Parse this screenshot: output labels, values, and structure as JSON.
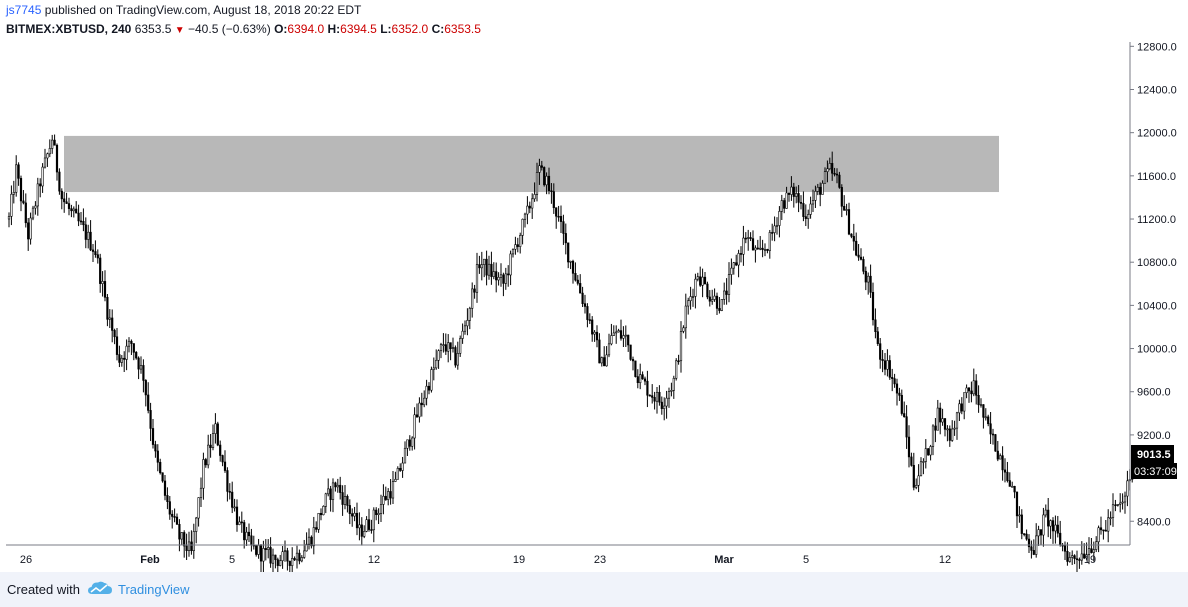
{
  "header": {
    "username": "js7745",
    "published_text": "published on TradingView.com, August 18, 2018 20:22 EDT",
    "symbol": "BITMEX:XBTUSD, 240",
    "last": "6353.5",
    "change": "−40.5 (−0.63%)",
    "open_label": "O:",
    "open": "6394.0",
    "high_label": "H:",
    "high": "6394.5",
    "low_label": "L:",
    "low": "6352.0",
    "close_label": "C:",
    "close": "6353.5"
  },
  "footer": {
    "created_with": "Created with",
    "brand": "TradingView"
  },
  "colors": {
    "zone": "#b8b8b8",
    "candle_up": "#ffffff",
    "candle_down": "#000000",
    "link": "#2962ff",
    "red": "#cc0000"
  },
  "chart_data": {
    "type": "candlestick",
    "price_axis": {
      "ticks": [
        "12800.0",
        "12400.0",
        "12000.0",
        "11600.0",
        "11200.0",
        "10800.0",
        "10400.0",
        "10000.0",
        "9600.0",
        "9200.0",
        "8400.0"
      ],
      "range": [
        8180,
        12840
      ]
    },
    "time_axis": {
      "ticks": [
        "26",
        "Feb",
        "5",
        "12",
        "19",
        "23",
        "Mar",
        "5",
        "12",
        "19"
      ]
    },
    "price_badge": "9013.5",
    "countdown_badge": "03:37:09",
    "zone": {
      "y_low": 11450,
      "y_high": 11970
    },
    "series": [
      {
        "price_path": [
          [
            0,
            11200
          ],
          [
            3,
            11650
          ],
          [
            8,
            11050
          ],
          [
            13,
            11550
          ],
          [
            18,
            11950
          ],
          [
            22,
            11400
          ],
          [
            26,
            11250
          ],
          [
            31,
            11100
          ],
          [
            36,
            10900
          ],
          [
            41,
            10350
          ],
          [
            46,
            9900
          ],
          [
            51,
            10050
          ],
          [
            56,
            9750
          ],
          [
            61,
            9000
          ],
          [
            66,
            8550
          ],
          [
            71,
            8250
          ],
          [
            76,
            8100
          ],
          [
            81,
            8900
          ],
          [
            86,
            9250
          ],
          [
            91,
            8750
          ],
          [
            96,
            8350
          ],
          [
            101,
            8150
          ],
          [
            106,
            8100
          ],
          [
            111,
            8050
          ],
          [
            116,
            8050
          ],
          [
            121,
            8100
          ],
          [
            126,
            8250
          ],
          [
            131,
            8550
          ],
          [
            136,
            8750
          ],
          [
            141,
            8550
          ],
          [
            146,
            8300
          ],
          [
            151,
            8400
          ],
          [
            156,
            8600
          ],
          [
            161,
            8750
          ],
          [
            166,
            9100
          ],
          [
            171,
            9450
          ],
          [
            176,
            9750
          ],
          [
            181,
            10050
          ],
          [
            186,
            9900
          ],
          [
            191,
            10300
          ],
          [
            196,
            10800
          ],
          [
            201,
            10700
          ],
          [
            206,
            10600
          ],
          [
            211,
            10950
          ],
          [
            216,
            11250
          ],
          [
            221,
            11650
          ],
          [
            224,
            11550
          ],
          [
            227,
            11350
          ],
          [
            232,
            10950
          ],
          [
            237,
            10600
          ],
          [
            242,
            10250
          ],
          [
            247,
            9850
          ],
          [
            252,
            10150
          ],
          [
            257,
            10100
          ],
          [
            262,
            9750
          ],
          [
            267,
            9600
          ],
          [
            272,
            9500
          ],
          [
            277,
            9700
          ],
          [
            282,
            10350
          ],
          [
            287,
            10700
          ],
          [
            292,
            10500
          ],
          [
            297,
            10400
          ],
          [
            302,
            10750
          ],
          [
            307,
            11050
          ],
          [
            312,
            10850
          ],
          [
            317,
            11000
          ],
          [
            322,
            11350
          ],
          [
            327,
            11450
          ],
          [
            332,
            11250
          ],
          [
            337,
            11450
          ],
          [
            342,
            11650
          ],
          [
            345,
            11550
          ],
          [
            348,
            11300
          ],
          [
            353,
            10900
          ],
          [
            358,
            10600
          ],
          [
            362,
            10000
          ],
          [
            367,
            9800
          ],
          [
            372,
            9450
          ],
          [
            377,
            8750
          ],
          [
            382,
            9000
          ],
          [
            387,
            9400
          ],
          [
            392,
            9200
          ],
          [
            397,
            9500
          ],
          [
            402,
            9650
          ],
          [
            407,
            9300
          ],
          [
            412,
            9050
          ],
          [
            417,
            8800
          ],
          [
            422,
            8300
          ],
          [
            427,
            8150
          ],
          [
            432,
            8450
          ],
          [
            437,
            8250
          ],
          [
            442,
            8050
          ],
          [
            447,
            8100
          ],
          [
            452,
            8200
          ],
          [
            457,
            8350
          ],
          [
            460,
            8500
          ],
          [
            464,
            8550
          ],
          [
            469,
            9000
          ]
        ]
      }
    ]
  }
}
